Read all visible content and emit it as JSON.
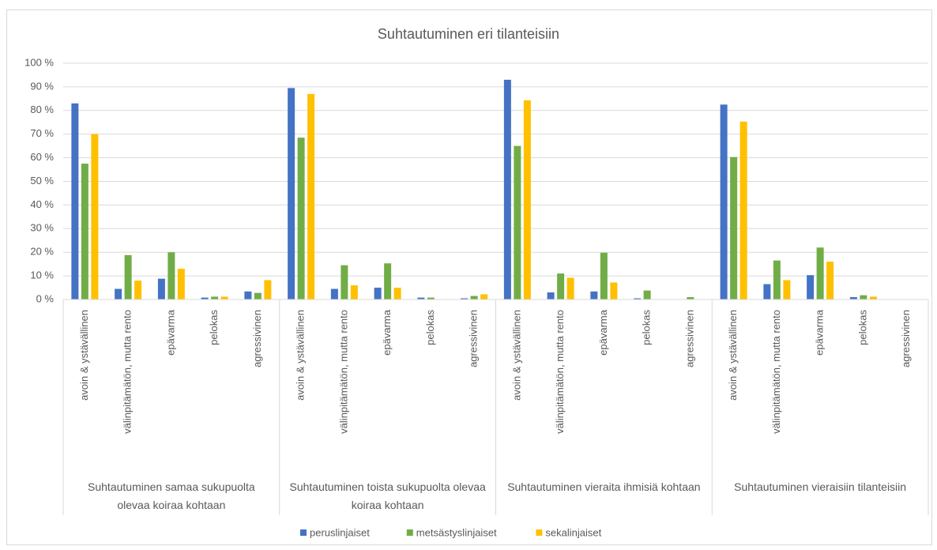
{
  "chart_data": {
    "type": "bar",
    "title": "Suhtautuminen eri tilanteisiin",
    "categories": [
      "avoin & ystävällinen",
      "välinpitämätön, mutta rento",
      "epävarma",
      "pelokas",
      "agressivinen",
      "avoin & ystävällinen",
      "välinpitämätön, mutta rento",
      "epävarma",
      "pelokas",
      "agressivinen",
      "avoin & ystävällinen",
      "välinpitämätön, mutta rento",
      "epävarma",
      "pelokas",
      "agressivinen",
      "avoin & ystävällinen",
      "välinpitämätön, mutta rento",
      "epävarma",
      "pelokas",
      "agressivinen"
    ],
    "group_labels": [
      "Suhtautuminen samaa sukupuolta olevaa koiraa kohtaan",
      "Suhtautuminen toista sukupuolta olevaa koiraa kohtaan",
      "Suhtautuminen vieraita ihmisiä kohtaan",
      "Suhtautuminen vieraisiin tilanteisiin"
    ],
    "series": [
      {
        "name": "peruslinjaiset",
        "color": "#4472c4",
        "values": [
          83,
          4.5,
          8.8,
          0.8,
          3.4,
          89.5,
          4.5,
          5,
          0.8,
          0.5,
          93,
          3,
          3.4,
          0.5,
          0,
          82.5,
          6.5,
          10.3,
          1,
          0
        ]
      },
      {
        "name": "metsästyslinjaiset",
        "color": "#70ad47",
        "values": [
          57.5,
          18.8,
          20,
          1.2,
          2.8,
          68.5,
          14.5,
          15.3,
          0.8,
          1.5,
          65,
          11,
          19.8,
          3.8,
          1,
          60.3,
          16.5,
          22,
          1.8,
          0
        ]
      },
      {
        "name": "sekalinjaiset",
        "color": "#ffc000",
        "values": [
          70,
          8,
          13,
          1.2,
          8.2,
          87,
          6,
          5,
          0,
          2.2,
          84.3,
          9.2,
          7.2,
          0,
          0,
          75.3,
          8.2,
          16,
          1.2,
          0
        ]
      }
    ],
    "ylim": [
      0,
      100
    ],
    "yticks": [
      {
        "value": 0,
        "label": "0 %"
      },
      {
        "value": 10,
        "label": "10 %"
      },
      {
        "value": 20,
        "label": "20 %"
      },
      {
        "value": 30,
        "label": "30 %"
      },
      {
        "value": 40,
        "label": "40 %"
      },
      {
        "value": 50,
        "label": "50 %"
      },
      {
        "value": 60,
        "label": "60 %"
      },
      {
        "value": 70,
        "label": "70 %"
      },
      {
        "value": 80,
        "label": "80 %"
      },
      {
        "value": 90,
        "label": "90 %"
      },
      {
        "value": 100,
        "label": "100 %"
      }
    ],
    "grid": true,
    "legend": "bottom"
  }
}
